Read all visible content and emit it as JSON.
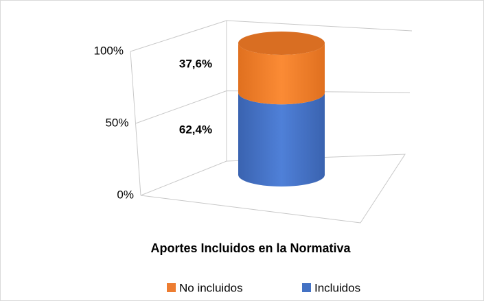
{
  "chart_data": {
    "type": "bar3d-stacked",
    "categories": [
      "Aportes Incluidos en la Normativa"
    ],
    "series": [
      {
        "name": "Incluidos",
        "color": "#4472c4",
        "values": [
          62.4
        ],
        "value_labels": [
          "62,4%"
        ]
      },
      {
        "name": "No incluidos",
        "color": "#ed7d31",
        "values": [
          37.6
        ],
        "value_labels": [
          "37,6%"
        ]
      }
    ],
    "ylim": [
      0,
      100
    ],
    "yticks": [
      {
        "value": 0,
        "label": "0%"
      },
      {
        "value": 50,
        "label": "50%"
      },
      {
        "value": 100,
        "label": "100%"
      }
    ],
    "grid": true,
    "legend": "bottom"
  }
}
